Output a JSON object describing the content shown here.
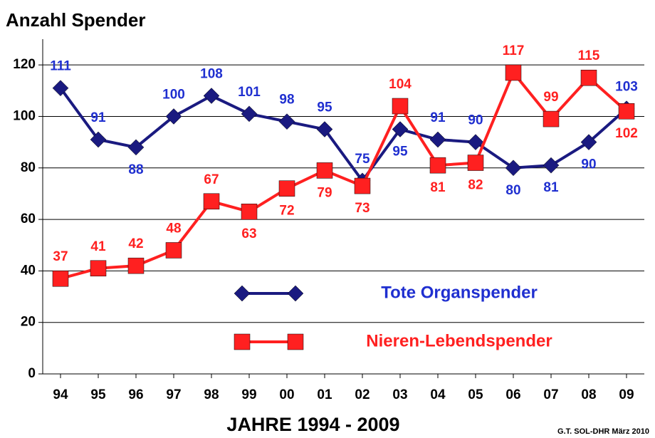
{
  "chart_data": {
    "type": "line",
    "title": "Anzahl Spender",
    "x_label": "JAHRE 1994 - 2009",
    "footnote": "G.T. SOL-DHR März 2010",
    "categories": [
      "94",
      "95",
      "96",
      "97",
      "98",
      "99",
      "00",
      "01",
      "02",
      "03",
      "04",
      "05",
      "06",
      "07",
      "08",
      "09"
    ],
    "series": [
      {
        "name": "Tote Organspender",
        "color": "#1a1a80",
        "label_color": "#1f2fd0",
        "marker": "diamond",
        "values": [
          111,
          91,
          88,
          100,
          108,
          101,
          98,
          95,
          75,
          95,
          91,
          90,
          80,
          81,
          90,
          103
        ]
      },
      {
        "name": "Nieren-Lebendspender",
        "color": "#ff2020",
        "label_color": "#ff2020",
        "marker": "square",
        "values": [
          37,
          41,
          42,
          48,
          67,
          63,
          72,
          79,
          73,
          104,
          81,
          82,
          117,
          99,
          115,
          102
        ]
      }
    ],
    "ylim": [
      0,
      130
    ],
    "yticks": [
      0,
      20,
      40,
      60,
      80,
      100,
      120
    ],
    "grid": true
  }
}
